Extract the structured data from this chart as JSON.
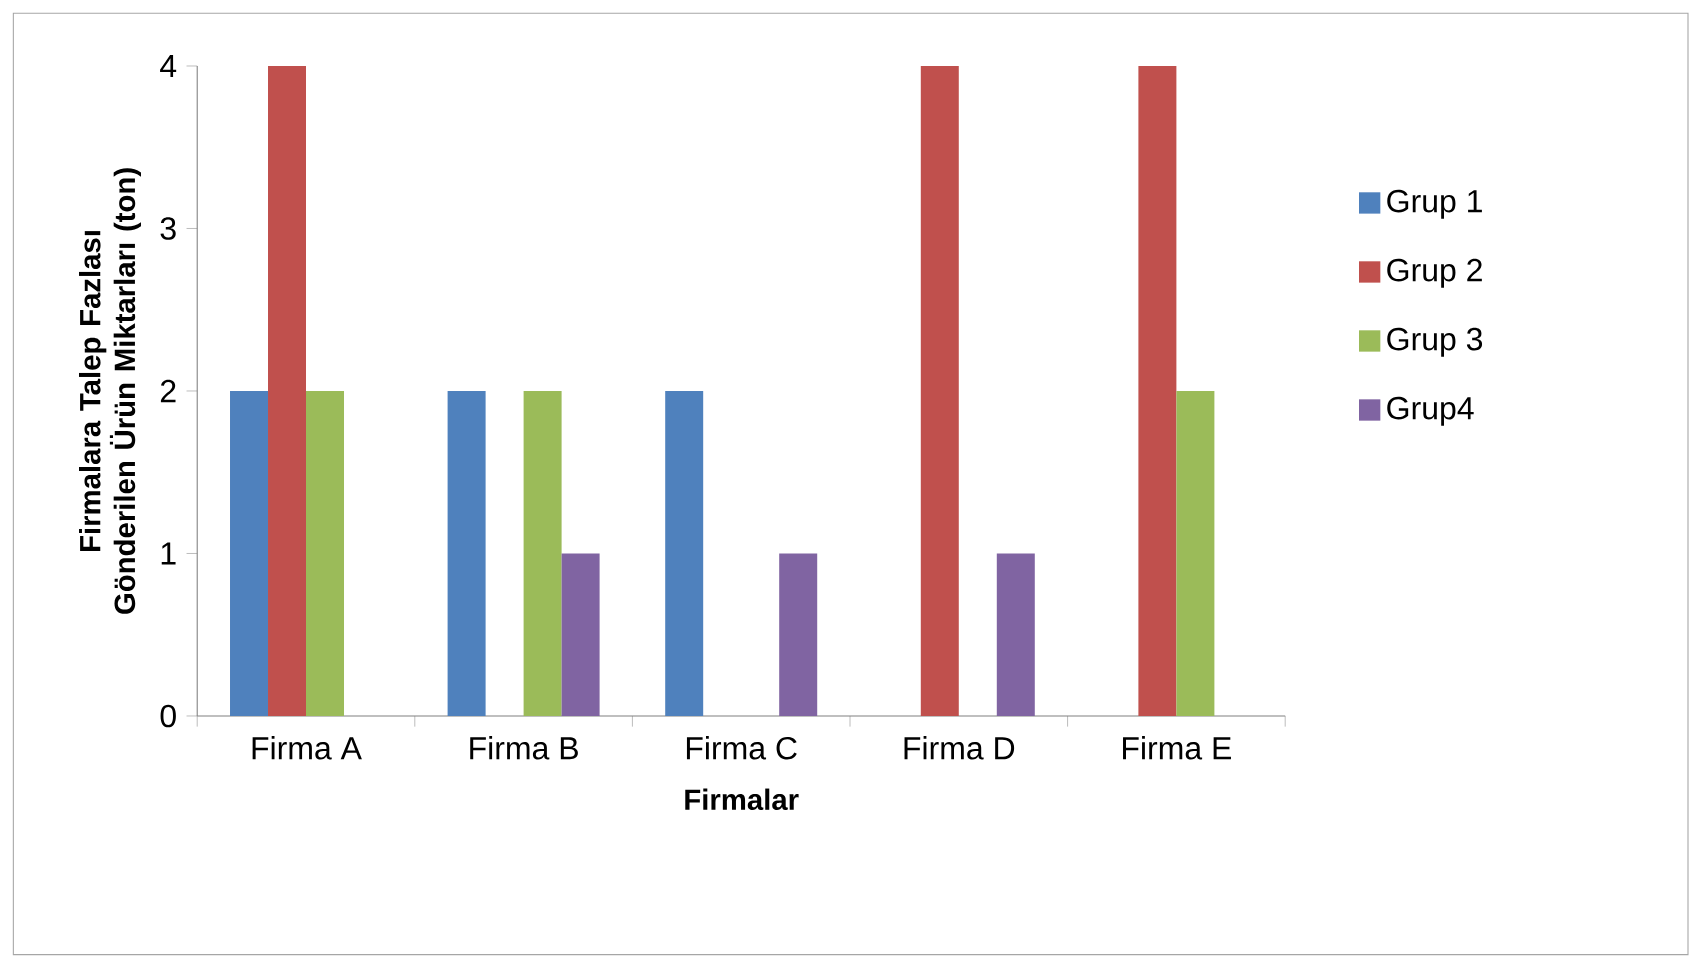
{
  "chart_data": {
    "type": "bar",
    "xlabel": "Firmalar",
    "ylabel": "Firmalara Talep Fazlası Gönderilen Ürün Miktarları (ton)",
    "categories": [
      "Firma A",
      "Firma B",
      "Firma C",
      "Firma D",
      "Firma E"
    ],
    "series": [
      {
        "name": "Grup 1",
        "color": "#4f81bd",
        "values": [
          2,
          2,
          2,
          null,
          null
        ]
      },
      {
        "name": "Grup 2",
        "color": "#c0504d",
        "values": [
          4,
          null,
          null,
          4,
          4
        ]
      },
      {
        "name": "Grup 3",
        "color": "#9bbb59",
        "values": [
          2,
          2,
          null,
          null,
          2
        ]
      },
      {
        "name": "Grup4",
        "color": "#8064a2",
        "values": [
          null,
          1,
          1,
          1,
          null
        ]
      }
    ],
    "ylim": [
      0,
      4
    ],
    "yticks": [
      0,
      1,
      2,
      3,
      4
    ],
    "legend": "right"
  }
}
